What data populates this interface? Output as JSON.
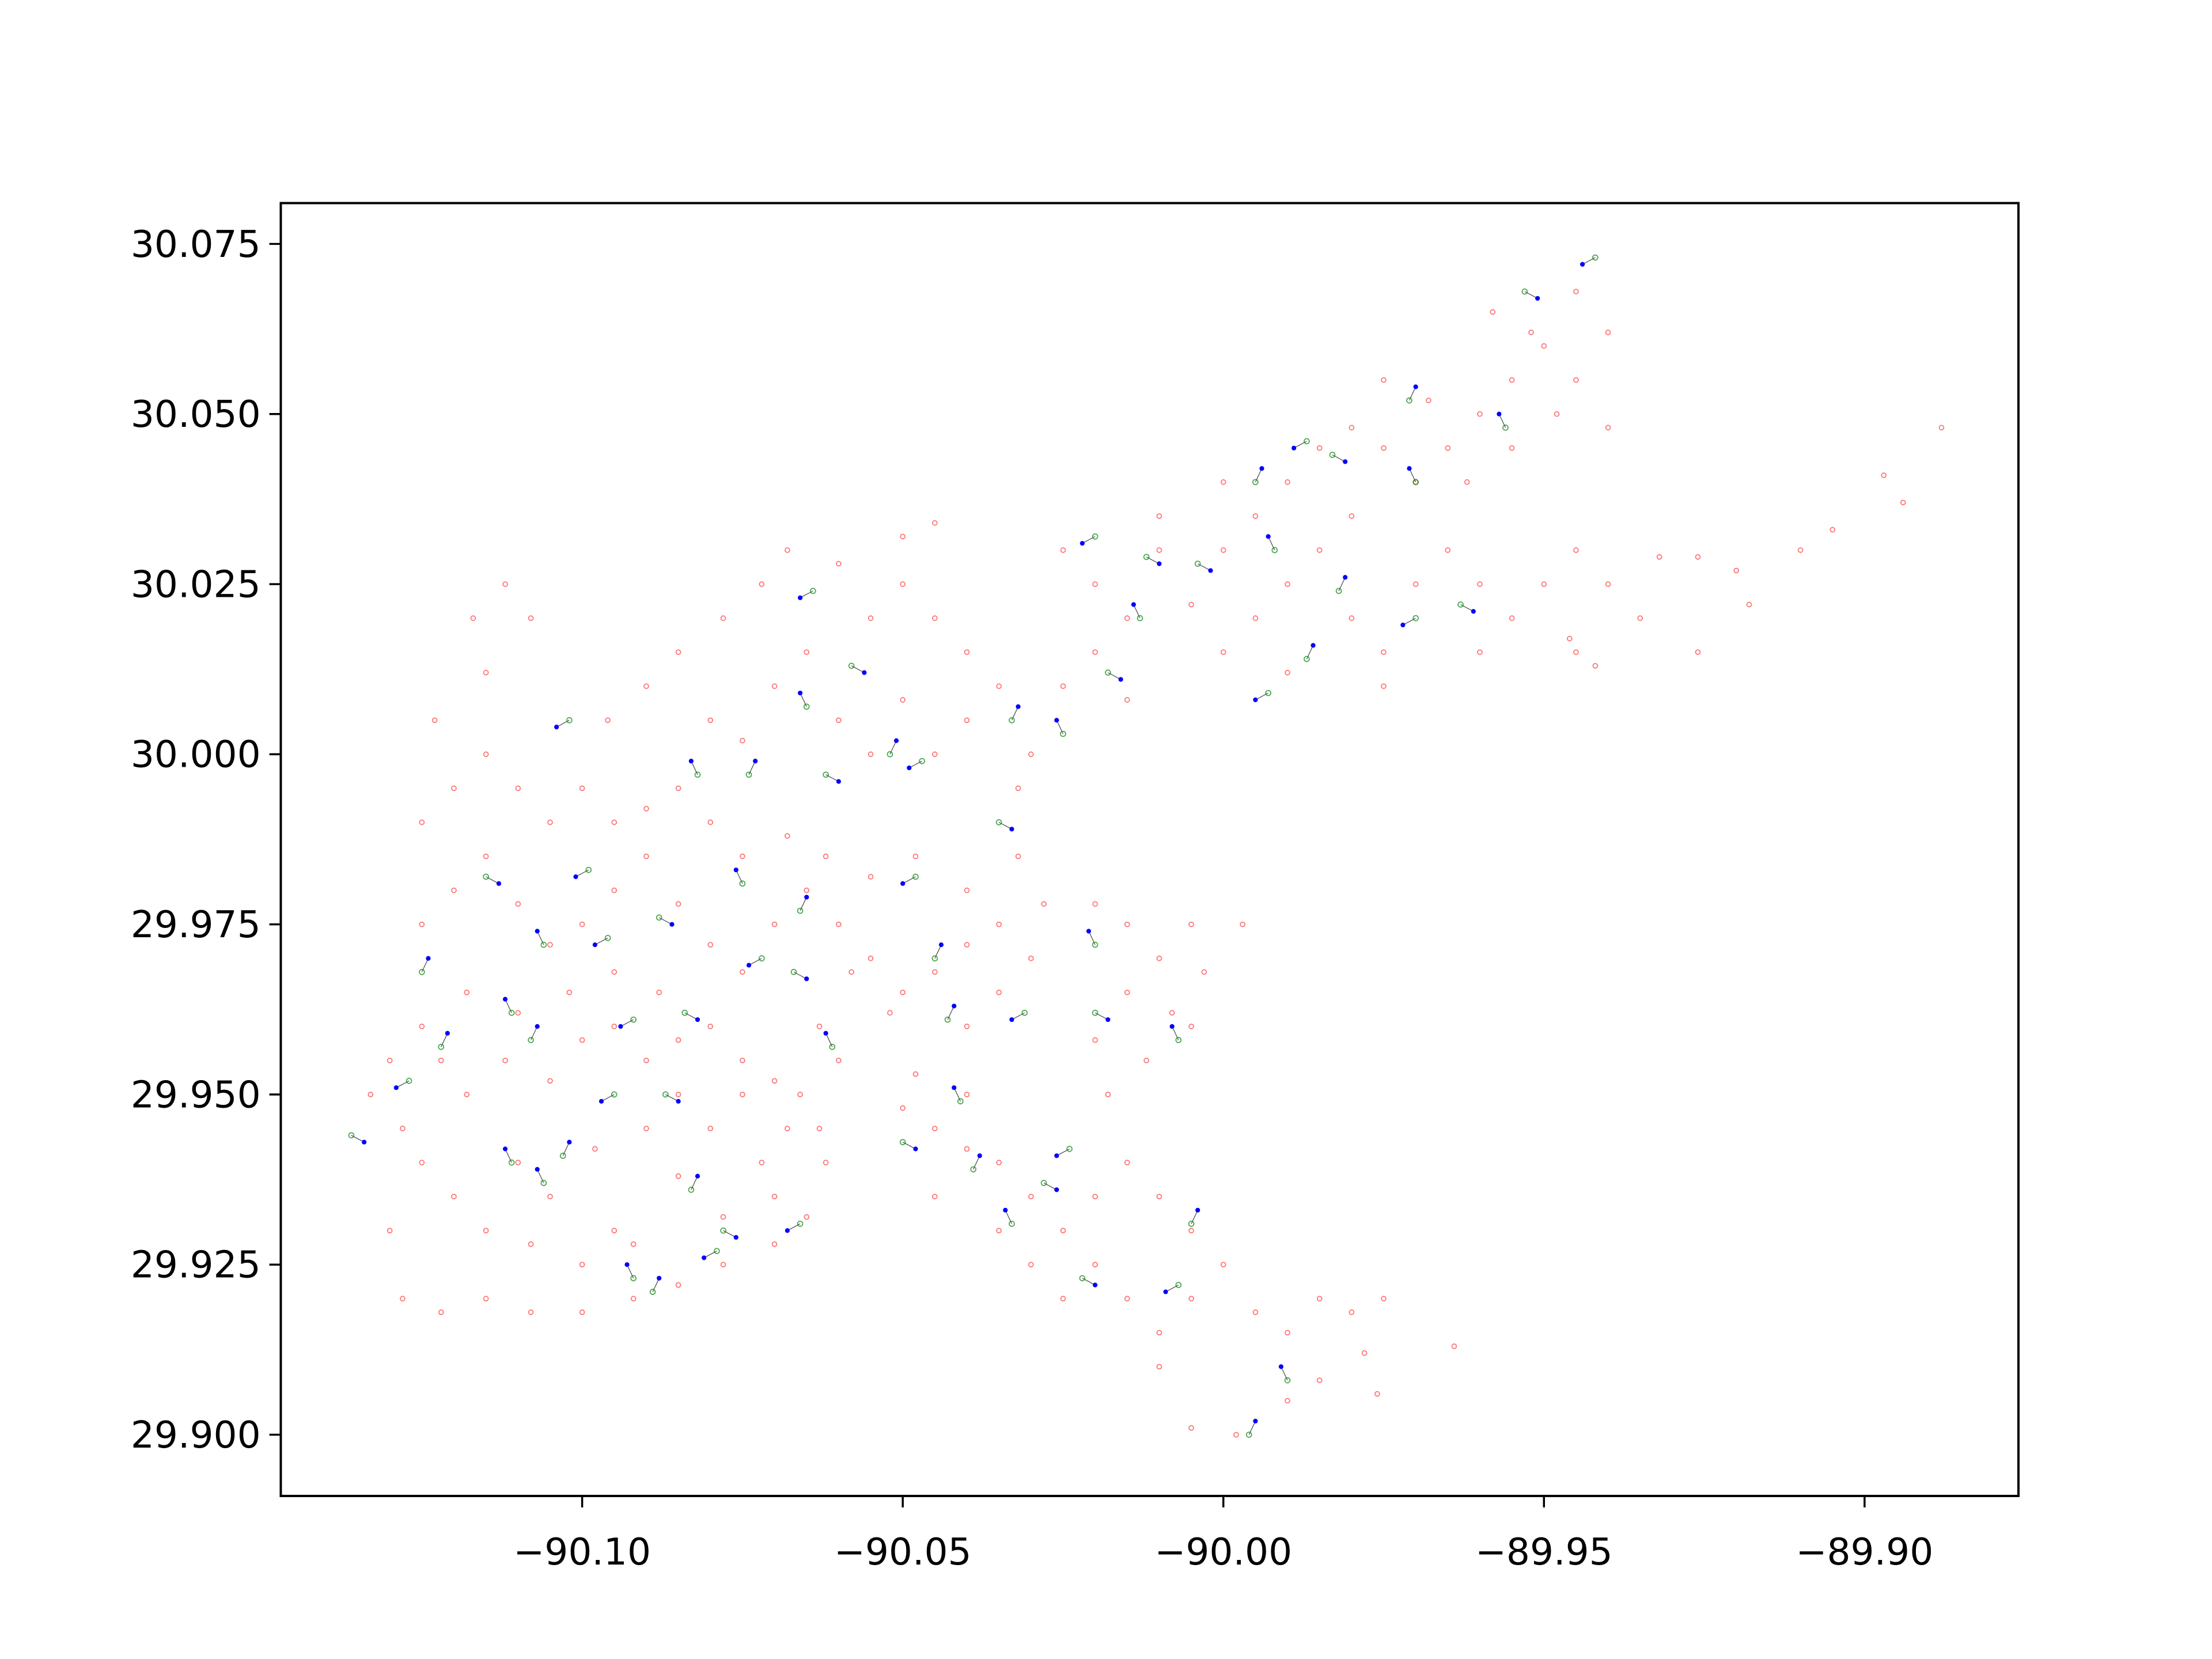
{
  "chart_data": {
    "type": "scatter",
    "xlim": [
      -90.147,
      -89.876
    ],
    "ylim": [
      29.891,
      30.081
    ],
    "xticks": [
      {
        "value": -90.1,
        "label": "−90.10"
      },
      {
        "value": -90.05,
        "label": "−90.05"
      },
      {
        "value": -90.0,
        "label": "−90.00"
      },
      {
        "value": -89.95,
        "label": "−89.95"
      },
      {
        "value": -89.9,
        "label": "−89.90"
      }
    ],
    "yticks": [
      {
        "value": 29.9,
        "label": "29.900"
      },
      29.925,
      {
        "value": 29.95,
        "label": "29.950"
      },
      29.975,
      {
        "value": 30.0,
        "label": "30.000"
      },
      30.025,
      {
        "value": 30.05,
        "label": "30.050"
      },
      30.075
    ],
    "grid": false,
    "series": [
      {
        "color": "red",
        "filled": false,
        "alpha": 0.55,
        "x": [
          -90.11,
          -90.105,
          -90.098,
          -90.095,
          -90.09,
          -90.085,
          -90.08,
          -90.075,
          -90.072,
          -90.068,
          -90.066,
          -90.07,
          -90.078,
          -90.085,
          -90.092,
          -90.1,
          -90.108,
          -90.115,
          -90.12,
          -90.125,
          -90.128,
          -90.122,
          -90.118,
          -90.112,
          -90.105,
          -90.1,
          -90.095,
          -90.09,
          -90.085,
          -90.08,
          -90.075,
          -90.07,
          -90.088,
          -90.095,
          -90.102,
          -90.11,
          -90.118,
          -90.125,
          -90.13,
          -90.133,
          -90.13,
          -90.128,
          -90.122,
          -90.115,
          -90.108,
          -90.1,
          -90.092,
          -90.085,
          -90.078,
          -90.07,
          -90.065,
          -90.062,
          -90.063,
          -90.125,
          -90.12,
          -90.115,
          -90.11,
          -90.105,
          -90.1,
          -90.095,
          -90.09,
          -90.085,
          -90.08,
          -90.075,
          -90.07,
          -90.065,
          -90.06,
          -90.055,
          -90.05,
          -90.045,
          -90.04,
          -90.035,
          -90.03,
          -90.028,
          -90.032,
          -90.04,
          -90.048,
          -90.055,
          -90.062,
          -90.068,
          -90.075,
          -90.08,
          -90.085,
          -90.09,
          -90.095,
          -90.1,
          -90.105,
          -90.11,
          -90.115,
          -90.12,
          -90.125,
          -90.123,
          -90.115,
          -90.108,
          -90.112,
          -90.117,
          -90.096,
          -90.09,
          -90.085,
          -90.078,
          -90.072,
          -90.068,
          -90.06,
          -90.055,
          -90.05,
          -90.045,
          -90.04,
          -90.035,
          -90.04,
          -90.045,
          -90.05,
          -90.055,
          -90.06,
          -90.065,
          -90.07,
          -90.075,
          -90.08,
          -90.05,
          -90.045,
          -90.032,
          -90.03,
          -90.058,
          -90.052,
          -90.063,
          -90.06,
          -90.04,
          -90.035,
          -90.05,
          -90.045,
          -90.04,
          -90.035,
          -90.03,
          -90.025,
          -90.02,
          -90.015,
          -90.01,
          -90.005,
          -90.0,
          -90.005,
          -90.01,
          -90.015,
          -90.02,
          -90.025,
          -90.03,
          -90.035,
          -89.995,
          -89.99,
          -89.985,
          -89.98,
          -89.975,
          -89.978,
          -89.985,
          -89.99,
          -89.998,
          -90.005,
          -90.01,
          -89.976,
          -89.964,
          -90.045,
          -90.04,
          -90.048,
          -90.02,
          -90.015,
          -90.01,
          -90.005,
          -90.003,
          -90.008,
          -90.015,
          -90.02,
          -90.012,
          -90.005,
          -89.997,
          -90.018,
          -90.025,
          -90.02,
          -90.015,
          -90.01,
          -90.005,
          -90.0,
          -89.995,
          -89.99,
          -89.985,
          -89.98,
          -89.975,
          -89.97,
          -89.965,
          -89.96,
          -89.955,
          -89.95,
          -89.945,
          -89.94,
          -89.935,
          -89.945,
          -89.96,
          -89.975,
          -89.99,
          -90.0,
          -89.995,
          -89.99,
          -89.985,
          -89.98,
          -89.975,
          -89.97,
          -89.965,
          -89.96,
          -89.955,
          -89.95,
          -89.945,
          -89.94,
          -89.948,
          -89.955,
          -89.962,
          -89.968,
          -89.975,
          -89.98,
          -90.0,
          -90.01,
          -90.02,
          -90.025,
          -90.015,
          -89.94,
          -89.952,
          -89.958,
          -89.945,
          -89.932,
          -89.926,
          -89.92,
          -89.918,
          -89.91,
          -89.905,
          -89.897,
          -89.894,
          -89.888,
          -89.942,
          -89.946,
          -89.926
        ],
        "values": [
          29.94,
          29.935,
          29.942,
          29.93,
          29.945,
          29.95,
          29.945,
          29.95,
          29.94,
          29.945,
          29.95,
          29.935,
          29.932,
          29.938,
          29.928,
          29.925,
          29.928,
          29.93,
          29.935,
          29.94,
          29.945,
          29.955,
          29.95,
          29.955,
          29.952,
          29.958,
          29.96,
          29.955,
          29.958,
          29.96,
          29.955,
          29.952,
          29.965,
          29.968,
          29.965,
          29.962,
          29.965,
          29.96,
          29.955,
          29.95,
          29.93,
          29.92,
          29.918,
          29.92,
          29.918,
          29.918,
          29.92,
          29.922,
          29.925,
          29.928,
          29.932,
          29.94,
          29.945,
          29.975,
          29.98,
          29.985,
          29.978,
          29.972,
          29.975,
          29.98,
          29.985,
          29.978,
          29.972,
          29.968,
          29.975,
          29.98,
          29.975,
          29.97,
          29.965,
          29.968,
          29.972,
          29.975,
          29.97,
          29.978,
          29.985,
          29.98,
          29.985,
          29.982,
          29.985,
          29.988,
          29.985,
          29.99,
          29.995,
          29.992,
          29.99,
          29.995,
          29.99,
          29.995,
          30.0,
          29.995,
          29.99,
          30.005,
          30.012,
          30.02,
          30.025,
          30.02,
          30.005,
          30.01,
          30.015,
          30.02,
          30.025,
          30.03,
          30.028,
          30.02,
          30.025,
          30.02,
          30.015,
          30.01,
          30.005,
          30.0,
          30.008,
          30.0,
          30.005,
          30.015,
          30.01,
          30.002,
          30.005,
          30.032,
          30.034,
          29.995,
          30.0,
          29.968,
          29.962,
          29.96,
          29.955,
          29.96,
          29.965,
          29.948,
          29.945,
          29.942,
          29.94,
          29.935,
          29.93,
          29.935,
          29.94,
          29.935,
          29.93,
          29.925,
          29.92,
          29.915,
          29.92,
          29.925,
          29.92,
          29.925,
          29.93,
          29.918,
          29.915,
          29.92,
          29.918,
          29.92,
          29.912,
          29.908,
          29.905,
          29.9,
          29.901,
          29.91,
          29.906,
          29.913,
          29.935,
          29.95,
          29.953,
          29.978,
          29.975,
          29.97,
          29.975,
          29.968,
          29.962,
          29.965,
          29.958,
          29.955,
          29.96,
          29.975,
          29.95,
          30.03,
          30.025,
          30.02,
          30.03,
          30.022,
          30.015,
          30.02,
          30.025,
          30.03,
          30.02,
          30.015,
          30.025,
          30.03,
          30.025,
          30.02,
          30.025,
          30.03,
          30.025,
          30.02,
          30.015,
          30.015,
          30.01,
          30.012,
          30.03,
          30.035,
          30.04,
          30.045,
          30.048,
          30.045,
          30.04,
          30.045,
          30.05,
          30.055,
          30.06,
          30.055,
          30.062,
          30.05,
          30.045,
          30.04,
          30.052,
          30.055,
          30.035,
          30.04,
          30.035,
          30.015,
          30.01,
          30.008,
          30.048,
          30.062,
          30.065,
          30.068,
          30.029,
          30.029,
          30.027,
          30.022,
          30.03,
          30.033,
          30.041,
          30.037,
          30.048,
          30.013,
          30.017,
          30.015
        ]
      },
      {
        "color": "blue",
        "filled": true,
        "alpha": 1,
        "x": [
          -89.944,
          -89.951,
          -89.957,
          -89.97,
          -89.989,
          -89.981,
          -89.971,
          -89.994,
          -90.022,
          -90.01,
          -90.014,
          -89.986,
          -89.972,
          -89.961,
          -89.993,
          -89.981,
          -90.066,
          -90.056,
          -90.066,
          -90.051,
          -90.049,
          -90.06,
          -90.083,
          -90.073,
          -90.101,
          -90.113,
          -90.107,
          -90.124,
          -90.098,
          -90.086,
          -90.076,
          -90.065,
          -90.05,
          -90.033,
          -90.021,
          -90.044,
          -90.074,
          -90.065,
          -90.112,
          -90.107,
          -90.094,
          -90.082,
          -90.062,
          -90.042,
          -90.033,
          -90.018,
          -90.008,
          -90.121,
          -90.129,
          -90.134,
          -90.112,
          -90.102,
          -90.097,
          -90.085,
          -90.107,
          -90.082,
          -90.068,
          -90.076,
          -90.093,
          -90.088,
          -90.081,
          -90.048,
          -90.042,
          -90.038,
          -90.026,
          -90.026,
          -90.034,
          -90.004,
          -90.009,
          -90.02,
          -89.991,
          -89.995,
          -89.995,
          -90.016,
          -90.026,
          -90.032,
          -90.104,
          -90.002
        ],
        "values": [
          30.072,
          30.067,
          30.05,
          30.054,
          30.045,
          30.043,
          30.042,
          30.042,
          30.031,
          30.028,
          30.022,
          30.016,
          30.019,
          30.021,
          30.032,
          30.026,
          30.023,
          30.012,
          30.009,
          30.002,
          29.998,
          29.996,
          29.999,
          29.999,
          29.982,
          29.981,
          29.974,
          29.97,
          29.972,
          29.975,
          29.983,
          29.979,
          29.981,
          29.989,
          29.974,
          29.972,
          29.969,
          29.967,
          29.964,
          29.96,
          29.96,
          29.961,
          29.959,
          29.963,
          29.961,
          29.961,
          29.96,
          29.959,
          29.951,
          29.943,
          29.942,
          29.943,
          29.949,
          29.949,
          29.939,
          29.938,
          29.93,
          29.929,
          29.925,
          29.923,
          29.926,
          29.942,
          29.951,
          29.941,
          29.941,
          29.936,
          29.933,
          29.933,
          29.921,
          29.922,
          29.91,
          29.902,
          30.008,
          30.011,
          30.005,
          30.007,
          30.004,
          30.027
        ]
      },
      {
        "color": "green",
        "filled": false,
        "alpha": 0.7,
        "x": [
          -89.942,
          -89.953,
          -89.956,
          -89.971,
          -89.987,
          -89.983,
          -89.97,
          -89.995,
          -90.02,
          -90.012,
          -90.013,
          -89.987,
          -89.97,
          -89.963,
          -89.992,
          -89.982,
          -90.064,
          -90.058,
          -90.065,
          -90.052,
          -90.047,
          -90.062,
          -90.082,
          -90.074,
          -90.099,
          -90.115,
          -90.106,
          -90.125,
          -90.096,
          -90.088,
          -90.075,
          -90.066,
          -90.048,
          -90.035,
          -90.02,
          -90.045,
          -90.072,
          -90.067,
          -90.111,
          -90.108,
          -90.092,
          -90.084,
          -90.061,
          -90.043,
          -90.031,
          -90.02,
          -90.007,
          -90.122,
          -90.127,
          -90.136,
          -90.111,
          -90.103,
          -90.095,
          -90.087,
          -90.106,
          -90.083,
          -90.066,
          -90.078,
          -90.092,
          -90.089,
          -90.079,
          -90.05,
          -90.041,
          -90.039,
          -90.024,
          -90.028,
          -90.033,
          -90.005,
          -90.007,
          -90.022,
          -89.99,
          -89.996,
          -89.993,
          -90.018,
          -90.025,
          -90.033,
          -90.102,
          -90.004
        ],
        "values": [
          30.073,
          30.068,
          30.048,
          30.052,
          30.046,
          30.044,
          30.04,
          30.04,
          30.032,
          30.029,
          30.02,
          30.014,
          30.02,
          30.022,
          30.03,
          30.024,
          30.024,
          30.013,
          30.007,
          30.0,
          29.999,
          29.997,
          29.997,
          29.997,
          29.983,
          29.982,
          29.972,
          29.968,
          29.973,
          29.976,
          29.981,
          29.977,
          29.982,
          29.99,
          29.972,
          29.97,
          29.97,
          29.968,
          29.962,
          29.958,
          29.961,
          29.962,
          29.957,
          29.961,
          29.962,
          29.962,
          29.958,
          29.957,
          29.952,
          29.944,
          29.94,
          29.941,
          29.95,
          29.95,
          29.937,
          29.936,
          29.931,
          29.93,
          29.923,
          29.921,
          29.927,
          29.943,
          29.949,
          29.939,
          29.942,
          29.937,
          29.931,
          29.931,
          29.922,
          29.923,
          29.908,
          29.9,
          30.009,
          30.012,
          30.003,
          30.005,
          30.005,
          30.028
        ]
      }
    ]
  }
}
